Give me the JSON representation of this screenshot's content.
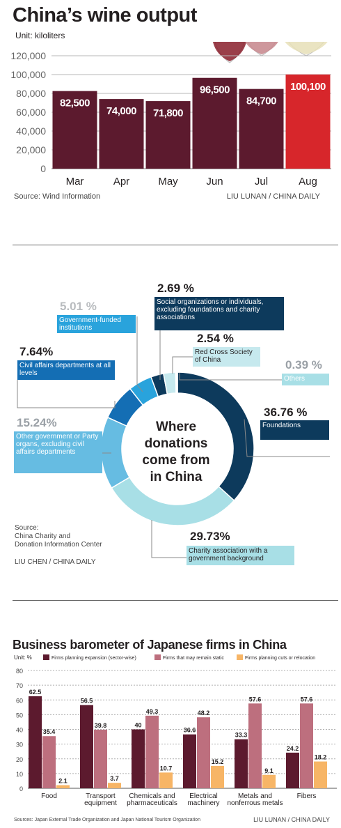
{
  "colors": {
    "bar_main": "#5c1a2e",
    "bar_highlight": "#d7262b",
    "grid": "#b7b7b7",
    "dark_navy": "#0d3a5c",
    "mid_blue": "#146eb4",
    "sky_blue": "#29a3dc",
    "pale_blue": "#66bce2",
    "light_teal": "#a8dfe6",
    "lighter_teal": "#c6e9ee",
    "grey_text": "#9aa0a6",
    "series_expand": "#5c1a2e",
    "series_static": "#bd6f7e",
    "series_cuts": "#f7b566"
  },
  "wine": {
    "title": "China’s wine output",
    "unit": "Unit: kiloliters",
    "source": "Source: Wind Information",
    "credit": "LIU LUNAN / CHINA DAILY",
    "icon": "wine-glasses-icon",
    "chart_data": {
      "type": "bar",
      "categories": [
        "Mar",
        "Apr",
        "May",
        "Jun",
        "Jul",
        "Aug"
      ],
      "values": [
        82500,
        74000,
        71800,
        96500,
        84700,
        100100
      ],
      "value_labels": [
        "82,500",
        "74,000",
        "71,800",
        "96,500",
        "84,700",
        "100,100"
      ],
      "highlight": [
        false,
        false,
        false,
        false,
        false,
        true
      ],
      "yticks": [
        "0",
        "20,000",
        "40,000",
        "60,000",
        "80,000",
        "100,000",
        "120,000"
      ],
      "ylim": [
        0,
        120000
      ],
      "grid": true,
      "title": "China’s wine output",
      "ylabel": "Unit: kiloliters"
    }
  },
  "donations": {
    "center_title": [
      "Where",
      "donations",
      "come from",
      "in China"
    ],
    "source_lines": [
      "Source:",
      "China Charity and",
      "Donation Information Center"
    ],
    "credit": "LIU CHEN  / CHINA DAILY",
    "chart_data": {
      "type": "pie",
      "title": "Where donations come from in China",
      "slices": [
        {
          "label": "Foundations",
          "value": 36.76,
          "pct_text": "36.76 %",
          "color": "#0d3a5c"
        },
        {
          "label": "Charity association with a government background",
          "value": 29.73,
          "pct_text": "29.73%",
          "color": "#a8dfe6"
        },
        {
          "label": "Other government or Party organs, excluding civil affairs departments",
          "value": 15.24,
          "pct_text": "15.24%",
          "color": "#66bce2"
        },
        {
          "label": "Civil affairs departments at all levels",
          "value": 7.64,
          "pct_text": "7.64%",
          "color": "#146eb4"
        },
        {
          "label": "Government-funded institutions",
          "value": 5.01,
          "pct_text": "5.01 %",
          "color": "#29a3dc"
        },
        {
          "label": "Social organizations or individuals, excluding foundations and charity associations",
          "value": 2.69,
          "pct_text": "2.69 %",
          "color": "#0d3a5c"
        },
        {
          "label": "Red Cross Society of China",
          "value": 2.54,
          "pct_text": "2.54 %",
          "color": "#c6e9ee"
        },
        {
          "label": "Others",
          "value": 0.39,
          "pct_text": "0.39 %",
          "color": "#ffffff"
        }
      ]
    }
  },
  "japan": {
    "title": "Business barometer of Japanese firms in China",
    "unit": "Unit: %",
    "source": "Sources: Japan External Trade Organization and Japan National Tourism Organization",
    "credit": "LIU LUNAN / CHINA DAILY",
    "chart_data": {
      "type": "bar",
      "categories": [
        "Food",
        "Transport equipment",
        "Chemicals and pharmaceuticals",
        "Electrical machinery",
        "Metals and nonferrous metals",
        "Fibers"
      ],
      "category_lines": [
        [
          "Food"
        ],
        [
          "Transport",
          "equipment"
        ],
        [
          "Chemicals and",
          "pharmaceuticals"
        ],
        [
          "Electrical",
          "machinery"
        ],
        [
          "Metals and",
          "nonferrous metals"
        ],
        [
          "Fibers"
        ]
      ],
      "series": [
        {
          "name": "Firms planning expansion (sector-wise)",
          "values": [
            62.5,
            56.5,
            40,
            36.6,
            33.3,
            24.2
          ],
          "labels": [
            "62.5",
            "56.5",
            "40",
            "36.6",
            "33.3",
            "24.2"
          ]
        },
        {
          "name": "Firms that may remain static",
          "values": [
            35.4,
            39.8,
            49.3,
            48.2,
            57.6,
            57.6
          ],
          "labels": [
            "35.4",
            "39.8",
            "49.3",
            "48.2",
            "57.6",
            "57.6"
          ]
        },
        {
          "name": "Firms planning cuts or relocation",
          "values": [
            2.1,
            3.7,
            10.7,
            15.2,
            9.1,
            18.2
          ],
          "labels": [
            "2.1",
            "3.7",
            "10.7",
            "15.2",
            "9.1",
            "18.2"
          ]
        }
      ],
      "yticks": [
        "0",
        "10",
        "20",
        "30",
        "40",
        "50",
        "60",
        "70",
        "80"
      ],
      "ylim": [
        0,
        80
      ],
      "grid": true,
      "legend": "top",
      "title": "Business barometer of Japanese firms in China",
      "ylabel": "Unit: %"
    }
  }
}
